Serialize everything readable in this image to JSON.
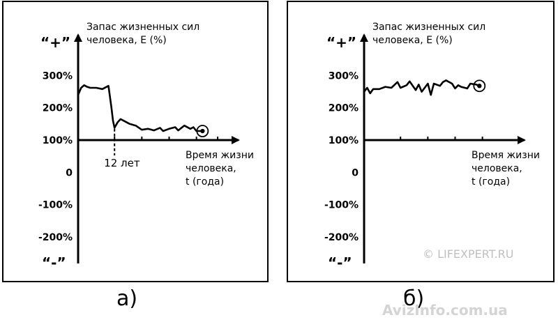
{
  "chart_data": [
    {
      "type": "line",
      "panel_caption": "а)",
      "ylabel": [
        "Запас жизненных сил",
        "человека,  E (%)"
      ],
      "xlabel": [
        "Время жизни",
        "человека,",
        "t (года)"
      ],
      "y_ticks": [
        "300%",
        "200%",
        "100%",
        "0",
        "-100%",
        "-200%"
      ],
      "y_tick_values": [
        300,
        200,
        100,
        0,
        -100,
        -200
      ],
      "positive_label": "“+”",
      "negative_label": "“-”",
      "ylim": [
        -280,
        320
      ],
      "xlim": [
        0,
        50
      ],
      "x_tick_marks": [
        12,
        21,
        30,
        39,
        46
      ],
      "annotation": {
        "text": "12 лет",
        "x": 12
      },
      "series": [
        {
          "x": [
            0,
            1,
            2,
            3,
            4,
            6,
            8,
            10,
            11,
            11.5,
            12,
            13,
            14,
            15,
            17,
            19,
            21,
            23,
            25,
            27,
            28,
            30,
            32,
            33,
            35,
            37,
            38,
            39,
            41
          ],
          "y": [
            240,
            262,
            270,
            265,
            262,
            262,
            258,
            268,
            200,
            160,
            138,
            155,
            165,
            160,
            150,
            145,
            132,
            135,
            130,
            138,
            128,
            135,
            140,
            130,
            145,
            135,
            140,
            128,
            128
          ]
        }
      ]
    },
    {
      "type": "line",
      "panel_caption": "б)",
      "ylabel": [
        "Запас жизненных сил",
        "человека,  E (%)"
      ],
      "xlabel": [
        "Время жизни",
        "человека,",
        "t (года)"
      ],
      "y_ticks": [
        "300%",
        "200%",
        "100%",
        "0",
        "-100%",
        "-200%"
      ],
      "y_tick_values": [
        300,
        200,
        100,
        0,
        -100,
        -200
      ],
      "positive_label": "“+”",
      "negative_label": "“-”",
      "ylim": [
        -280,
        320
      ],
      "xlim": [
        0,
        50
      ],
      "x_tick_marks": [
        12,
        21,
        30,
        39
      ],
      "series": [
        {
          "x": [
            0,
            1,
            2,
            3,
            5,
            7,
            9,
            11,
            12,
            14,
            15,
            17,
            18,
            19,
            21,
            22,
            23,
            25,
            26,
            27,
            29,
            30,
            31,
            32,
            34,
            35,
            37,
            38
          ],
          "y": [
            250,
            262,
            245,
            258,
            258,
            265,
            262,
            280,
            262,
            270,
            282,
            255,
            272,
            250,
            275,
            240,
            275,
            268,
            280,
            285,
            275,
            260,
            270,
            265,
            260,
            275,
            272,
            268
          ]
        }
      ]
    }
  ],
  "watermark": "© LIFEXPERT.RU",
  "site_watermark": "AvizInfo.com.ua"
}
